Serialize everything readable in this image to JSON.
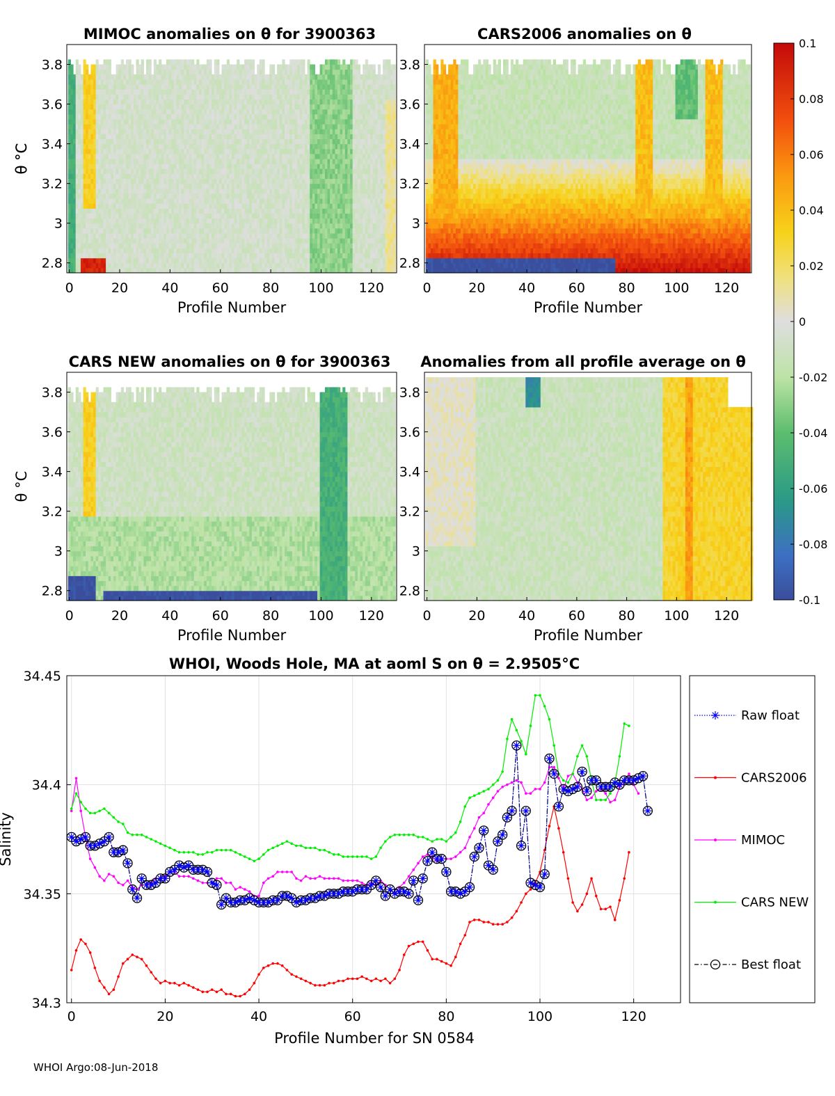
{
  "panels": [
    {
      "id": "p1",
      "title": "MIMOC anomalies on θ  for 3900363",
      "xlabel": "Profile Number",
      "ylabel": "θ °C",
      "variant": "mimoc"
    },
    {
      "id": "p2",
      "title": "CARS2006 anomalies on θ",
      "xlabel": "Profile Number",
      "ylabel": "θ °C",
      "variant": "cars2006"
    },
    {
      "id": "p3",
      "title": "CARS NEW anomalies on θ for 3900363",
      "xlabel": "Profile Number",
      "ylabel": "θ °C",
      "variant": "carsnew"
    },
    {
      "id": "p4",
      "title": "Anomalies from all profile average on θ",
      "xlabel": "Profile Number",
      "ylabel": "",
      "variant": "average"
    }
  ],
  "heatmap_axes": {
    "xticks": [
      "0",
      "20",
      "40",
      "60",
      "80",
      "100",
      "120"
    ],
    "yticks": [
      "2.8",
      "3",
      "3.2",
      "3.4",
      "3.6",
      "3.8"
    ],
    "xlim": [
      -1,
      130
    ],
    "ylim": [
      2.75,
      3.9
    ]
  },
  "colorbar": {
    "labels": [
      "0.1",
      "0.08",
      "0.06",
      "0.04",
      "0.02",
      "0",
      "-0.02",
      "-0.04",
      "-0.06",
      "-0.08",
      "-0.1"
    ],
    "range": [
      -0.1,
      0.1
    ]
  },
  "chart_data": {
    "type": "line",
    "title": "WHOI, Woods Hole, MA at aoml S on θ = 2.9505°C",
    "xlabel": "Profile Number for SN 0584",
    "ylabel": "Salinity",
    "xlim": [
      -1,
      130
    ],
    "ylim": [
      34.3,
      34.45
    ],
    "xticks": [
      "0",
      "20",
      "40",
      "60",
      "80",
      "100",
      "120"
    ],
    "yticks": [
      "34.3",
      "34.35",
      "34.4",
      "34.45"
    ],
    "grid": true,
    "legend_position": "outside-right",
    "series": [
      {
        "name": "Raw float",
        "color": "#0000ff",
        "marker": "asterisk",
        "values": [
          34.376,
          34.374,
          34.375,
          34.376,
          34.372,
          34.372,
          34.373,
          34.374,
          34.376,
          34.369,
          34.369,
          34.37,
          34.364,
          34.352,
          34.348,
          34.357,
          34.354,
          34.354,
          34.355,
          34.357,
          34.357,
          34.36,
          34.361,
          34.363,
          34.362,
          34.363,
          34.361,
          34.361,
          34.361,
          34.36,
          34.355,
          34.354,
          34.345,
          34.348,
          34.346,
          34.346,
          34.347,
          34.347,
          34.348,
          34.347,
          34.346,
          34.346,
          34.346,
          34.347,
          34.347,
          34.349,
          34.349,
          34.348,
          34.346,
          34.347,
          34.347,
          34.348,
          34.348,
          34.349,
          34.349,
          34.35,
          34.35,
          34.35,
          34.351,
          34.351,
          34.351,
          34.352,
          34.352,
          34.352,
          34.354,
          34.356,
          34.353,
          34.349,
          34.352,
          34.35,
          34.351,
          34.351,
          34.35,
          34.356,
          34.347,
          34.357,
          34.365,
          34.369,
          34.366,
          34.366,
          34.36,
          34.351,
          34.351,
          34.35,
          34.351,
          34.353,
          34.367,
          34.371,
          34.379,
          34.363,
          34.361,
          34.374,
          34.377,
          34.385,
          34.388,
          34.418,
          34.372,
          34.388,
          34.355,
          34.354,
          34.353,
          34.359,
          34.412,
          34.405,
          34.39,
          34.398,
          34.397,
          34.398,
          34.399,
          34.406,
          34.397,
          34.402,
          34.402,
          34.399,
          34.399,
          34.399,
          34.401,
          34.4,
          34.402,
          34.402,
          34.402,
          34.403,
          34.404,
          34.388
        ]
      },
      {
        "name": "CARS2006",
        "color": "#ff0000",
        "marker": "dot",
        "values": [
          34.315,
          34.324,
          34.329,
          34.327,
          34.323,
          34.316,
          34.31,
          34.307,
          34.304,
          34.306,
          34.312,
          34.318,
          34.32,
          34.322,
          34.321,
          34.32,
          34.317,
          34.314,
          34.311,
          34.309,
          34.31,
          34.309,
          34.309,
          34.308,
          34.309,
          34.308,
          34.307,
          34.306,
          34.305,
          34.305,
          34.306,
          34.305,
          34.306,
          34.304,
          34.304,
          34.303,
          34.303,
          34.304,
          34.306,
          34.309,
          34.313,
          34.316,
          34.317,
          34.318,
          34.318,
          34.317,
          34.315,
          34.313,
          34.312,
          34.311,
          34.31,
          34.309,
          34.308,
          34.308,
          34.308,
          34.309,
          34.309,
          34.31,
          34.31,
          34.311,
          34.311,
          34.311,
          34.312,
          34.311,
          34.31,
          34.311,
          34.31,
          34.311,
          34.309,
          34.311,
          34.315,
          34.322,
          34.326,
          34.327,
          34.328,
          34.328,
          34.324,
          34.32,
          34.32,
          34.319,
          34.318,
          34.317,
          34.321,
          34.327,
          34.331,
          34.337,
          34.338,
          34.338,
          34.337,
          34.337,
          34.336,
          34.336,
          34.336,
          34.337,
          34.339,
          34.342,
          34.346,
          34.35,
          34.352,
          34.355,
          34.36,
          34.37,
          34.381,
          34.39,
          34.38,
          34.369,
          34.357,
          34.346,
          34.342,
          34.345,
          34.35,
          34.357,
          34.349,
          34.343,
          34.343,
          34.344,
          34.338,
          34.347,
          34.357,
          34.369
        ]
      },
      {
        "name": "MIMOC",
        "color": "#ff00ff",
        "marker": "dot",
        "values": [
          34.388,
          34.403,
          34.388,
          34.376,
          34.366,
          34.362,
          34.358,
          34.356,
          34.359,
          34.358,
          34.355,
          34.354,
          34.356,
          34.353,
          34.352,
          34.354,
          34.354,
          34.355,
          34.357,
          34.357,
          34.358,
          34.36,
          34.36,
          34.358,
          34.358,
          34.358,
          34.357,
          34.356,
          34.355,
          34.355,
          34.355,
          34.357,
          34.357,
          34.355,
          34.355,
          34.352,
          34.353,
          34.352,
          34.351,
          34.349,
          34.349,
          34.355,
          34.357,
          34.358,
          34.36,
          34.36,
          34.36,
          34.36,
          34.357,
          34.356,
          34.358,
          34.357,
          34.357,
          34.358,
          34.357,
          34.357,
          34.357,
          34.357,
          34.356,
          34.356,
          34.356,
          34.356,
          34.355,
          34.354,
          34.355,
          34.354,
          34.356,
          34.354,
          34.352,
          34.35,
          34.353,
          34.355,
          34.358,
          34.361,
          34.364,
          34.367,
          34.368,
          34.367,
          34.365,
          34.366,
          34.366,
          34.366,
          34.367,
          34.369,
          34.371,
          34.376,
          34.38,
          34.385,
          34.387,
          34.391,
          34.394,
          34.397,
          34.399,
          34.4,
          34.401,
          34.402,
          34.401,
          34.396,
          34.396,
          34.398,
          34.398,
          34.401,
          34.408,
          34.408,
          34.403,
          34.398,
          34.404,
          34.405,
          34.401,
          34.398,
          34.393,
          34.394,
          34.397,
          34.398,
          34.396,
          34.392,
          34.393,
          34.399,
          34.401,
          34.405,
          34.4,
          34.396
        ]
      },
      {
        "name": "CARS NEW",
        "color": "#00ee00",
        "marker": "dot",
        "values": [
          34.389,
          34.396,
          34.392,
          34.389,
          34.387,
          34.387,
          34.388,
          34.389,
          34.387,
          34.385,
          34.383,
          34.382,
          34.378,
          34.377,
          34.377,
          34.377,
          34.376,
          34.375,
          34.374,
          34.373,
          34.372,
          34.371,
          34.37,
          34.369,
          34.369,
          34.369,
          34.369,
          34.368,
          34.368,
          34.369,
          34.369,
          34.37,
          34.37,
          34.37,
          34.37,
          34.369,
          34.368,
          34.367,
          34.366,
          34.365,
          34.366,
          34.368,
          34.37,
          34.371,
          34.372,
          34.373,
          34.374,
          34.373,
          34.372,
          34.372,
          34.371,
          34.371,
          34.371,
          34.37,
          34.37,
          34.369,
          34.368,
          34.368,
          34.367,
          34.367,
          34.367,
          34.367,
          34.367,
          34.367,
          34.366,
          34.367,
          34.371,
          34.374,
          34.376,
          34.377,
          34.377,
          34.377,
          34.377,
          34.377,
          34.376,
          34.376,
          34.375,
          34.374,
          34.375,
          34.375,
          34.374,
          34.376,
          34.378,
          34.383,
          34.39,
          34.394,
          34.395,
          34.396,
          34.397,
          34.398,
          34.4,
          34.402,
          34.406,
          34.421,
          34.43,
          34.425,
          34.42,
          34.414,
          34.427,
          34.441,
          34.441,
          34.436,
          34.43,
          34.418,
          34.405,
          34.402,
          34.401,
          34.405,
          34.413,
          34.418,
          34.413,
          34.402,
          34.393,
          34.393,
          34.393,
          34.396,
          34.401,
          34.413,
          34.428,
          34.427
        ]
      },
      {
        "name": "Best float",
        "color": "#000000",
        "marker": "circle",
        "values": [
          34.376,
          34.374,
          34.375,
          34.376,
          34.372,
          34.372,
          34.373,
          34.374,
          34.376,
          34.369,
          34.369,
          34.37,
          34.364,
          34.352,
          34.348,
          34.357,
          34.354,
          34.354,
          34.355,
          34.357,
          34.357,
          34.36,
          34.361,
          34.363,
          34.362,
          34.363,
          34.361,
          34.361,
          34.361,
          34.36,
          34.355,
          34.354,
          34.345,
          34.348,
          34.346,
          34.346,
          34.347,
          34.347,
          34.348,
          34.347,
          34.346,
          34.346,
          34.346,
          34.347,
          34.347,
          34.349,
          34.349,
          34.348,
          34.346,
          34.347,
          34.347,
          34.348,
          34.348,
          34.349,
          34.349,
          34.35,
          34.35,
          34.35,
          34.351,
          34.351,
          34.351,
          34.352,
          34.352,
          34.352,
          34.354,
          34.356,
          34.353,
          34.349,
          34.352,
          34.35,
          34.351,
          34.351,
          34.35,
          34.356,
          34.347,
          34.357,
          34.365,
          34.369,
          34.366,
          34.366,
          34.36,
          34.351,
          34.351,
          34.35,
          34.351,
          34.353,
          34.367,
          34.371,
          34.379,
          34.363,
          34.361,
          34.374,
          34.377,
          34.385,
          34.388,
          34.418,
          34.372,
          34.388,
          34.355,
          34.354,
          34.353,
          34.359,
          34.412,
          34.405,
          34.39,
          34.398,
          34.397,
          34.398,
          34.399,
          34.406,
          34.397,
          34.402,
          34.402,
          34.399,
          34.399,
          34.399,
          34.401,
          34.4,
          34.402,
          34.402,
          34.402,
          34.403,
          34.404,
          34.388
        ]
      }
    ]
  },
  "footer": "WHOI Argo:08-Jun-2018"
}
